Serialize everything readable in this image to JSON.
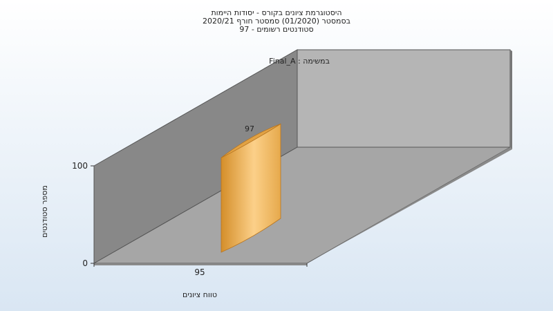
{
  "chart_data": {
    "type": "bar",
    "title_lines": [
      "היסטוגרמת ציונים בקורס - יסודות היימות",
      "בסמסטר  (01/2020)  סמסטר חורף  2020/21",
      "סטודנטים רשומים - 97"
    ],
    "series_label": "Final_A : במשימה",
    "categories": [
      "95"
    ],
    "values": [
      97
    ],
    "data_labels": [
      "97"
    ],
    "y_ticks": [
      "0",
      "100"
    ],
    "ylim": [
      0,
      100
    ],
    "xlabel": "טווח ציונים",
    "ylabel": "מספר סטודנטים",
    "colors": {
      "bar_light": "#fcd089",
      "bar_dark": "#d48e2a",
      "bar_top": "#e2a244",
      "wall_back": "#b5b5b5",
      "wall_left": "#888888",
      "floor": "#a6a6a6"
    }
  }
}
